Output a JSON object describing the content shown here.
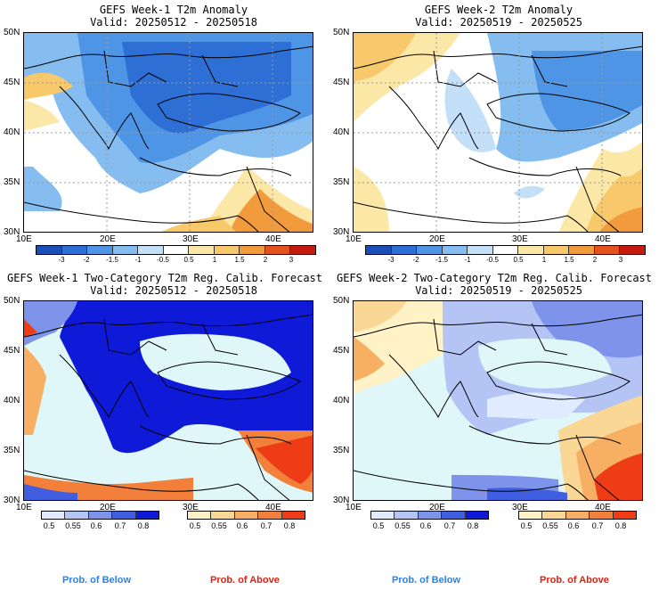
{
  "panels": [
    {
      "title": "GEFS Week-1 T2m Anomaly",
      "valid": "Valid: 20250512 - 20250518"
    },
    {
      "title": "GEFS Week-2 T2m Anomaly",
      "valid": "Valid: 20250519 - 20250525"
    },
    {
      "title": "GEFS Week-1 Two-Category T2m Reg. Calib. Forecast",
      "valid": "Valid: 20250512 - 20250518"
    },
    {
      "title": "GEFS Week-2 Two-Category T2m Reg. Calib. Forecast",
      "valid": "Valid: 20250519 - 20250525"
    }
  ],
  "lat_labels": [
    "50N",
    "45N",
    "40N",
    "35N",
    "30N"
  ],
  "lon_labels": [
    "10E",
    "20E",
    "30E",
    "40E"
  ],
  "anomaly_scale": {
    "labels": [
      "-3",
      "-2",
      "-1.5",
      "-1",
      "-0.5",
      "0.5",
      "1",
      "1.5",
      "2",
      "3"
    ],
    "colors": [
      "#1a4fb5",
      "#2e6fd6",
      "#4f95e6",
      "#85bdf0",
      "#c3e0f8",
      "#ffffff",
      "#fbe8a6",
      "#f8c96a",
      "#f29b3c",
      "#e4521d",
      "#c81b10"
    ]
  },
  "prob_below": {
    "labels": [
      "0.5",
      "0.55",
      "0.6",
      "0.7",
      "0.8"
    ],
    "colors": [
      "#e0ebff",
      "#b3c4f5",
      "#7e94ea",
      "#3f5ee0",
      "#0f1ad8"
    ]
  },
  "prob_above": {
    "labels": [
      "0.5",
      "0.55",
      "0.6",
      "0.7",
      "0.8"
    ],
    "colors": [
      "#fff2c6",
      "#fbd795",
      "#f7b063",
      "#f2803a",
      "#ed3c16"
    ]
  },
  "footer": {
    "below": "Prob. of Below",
    "above": "Prob. of Above",
    "below_color": "#2b82e8",
    "above_color": "#e02010"
  }
}
